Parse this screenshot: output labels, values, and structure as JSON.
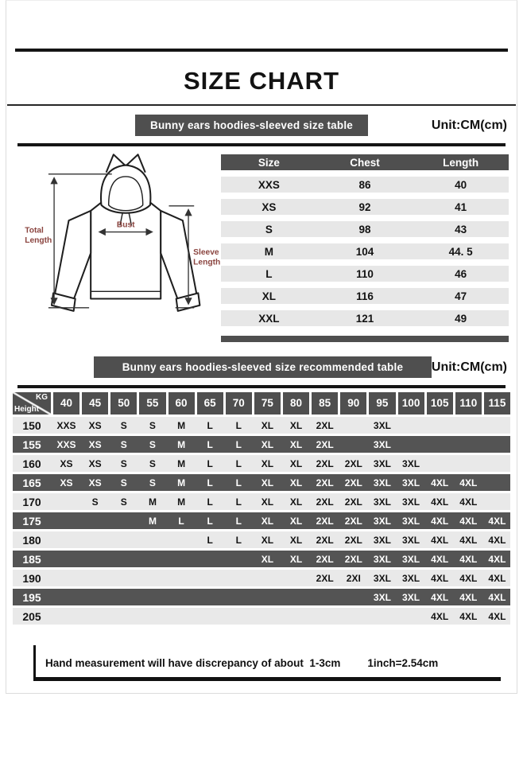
{
  "page": {
    "title": "SIZE CHART"
  },
  "colors": {
    "banner_gray": "#4f4f4f",
    "row_light": "#e9e9e9",
    "row_dark": "#545454",
    "diagram_label_red": "#8b4540"
  },
  "section1": {
    "banner": "Bunny ears hoodies-sleeved size  table",
    "unit": "Unit:CM(cm)",
    "diagram_labels": {
      "total_length": "Total Length",
      "bust": "Bust",
      "sleeve_length": "Sleeve Length"
    },
    "table": {
      "columns": [
        "Size",
        "Chest",
        "Length"
      ],
      "rows": [
        [
          "XXS",
          "86",
          "40"
        ],
        [
          "XS",
          "92",
          "41"
        ],
        [
          "S",
          "98",
          "43"
        ],
        [
          "M",
          "104",
          "44. 5"
        ],
        [
          "L",
          "110",
          "46"
        ],
        [
          "XL",
          "116",
          "47"
        ],
        [
          "XXL",
          "121",
          "49"
        ]
      ]
    }
  },
  "section2": {
    "banner": "Bunny ears hoodies-sleeved size recommended table",
    "unit": "Unit:CM(cm)",
    "matrix": {
      "corner": {
        "top": "KG",
        "bottom": "Height"
      },
      "weights": [
        "40",
        "45",
        "50",
        "55",
        "60",
        "65",
        "70",
        "75",
        "80",
        "85",
        "90",
        "95",
        "100",
        "105",
        "110",
        "115"
      ],
      "rows": [
        {
          "height": "150",
          "shade": "light",
          "values": [
            "XXS",
            "XS",
            "S",
            "S",
            "M",
            "L",
            "L",
            "XL",
            "XL",
            "2XL",
            "",
            "3XL",
            "",
            "",
            "",
            ""
          ]
        },
        {
          "height": "155",
          "shade": "dark",
          "values": [
            "XXS",
            "XS",
            "S",
            "S",
            "M",
            "L",
            "L",
            "XL",
            "XL",
            "2XL",
            "",
            "3XL",
            "",
            "",
            "",
            ""
          ]
        },
        {
          "height": "160",
          "shade": "light",
          "values": [
            "XS",
            "XS",
            "S",
            "S",
            "M",
            "L",
            "L",
            "XL",
            "XL",
            "2XL",
            "2XL",
            "3XL",
            "3XL",
            "",
            "",
            ""
          ]
        },
        {
          "height": "165",
          "shade": "dark",
          "values": [
            "XS",
            "XS",
            "S",
            "S",
            "M",
            "L",
            "L",
            "XL",
            "XL",
            "2XL",
            "2XL",
            "3XL",
            "3XL",
            "4XL",
            "4XL",
            ""
          ]
        },
        {
          "height": "170",
          "shade": "light",
          "values": [
            "",
            "S",
            "S",
            "M",
            "M",
            "L",
            "L",
            "XL",
            "XL",
            "2XL",
            "2XL",
            "3XL",
            "3XL",
            "4XL",
            "4XL",
            ""
          ]
        },
        {
          "height": "175",
          "shade": "dark",
          "values": [
            "",
            "",
            "",
            "M",
            "L",
            "L",
            "L",
            "XL",
            "XL",
            "2XL",
            "2XL",
            "3XL",
            "3XL",
            "4XL",
            "4XL",
            "4XL"
          ]
        },
        {
          "height": "180",
          "shade": "light",
          "values": [
            "",
            "",
            "",
            "",
            "",
            "L",
            "L",
            "XL",
            "XL",
            "2XL",
            "2XL",
            "3XL",
            "3XL",
            "4XL",
            "4XL",
            "4XL"
          ]
        },
        {
          "height": "185",
          "shade": "dark",
          "values": [
            "",
            "",
            "",
            "",
            "",
            "",
            "",
            "XL",
            "XL",
            "2XL",
            "2XL",
            "3XL",
            "3XL",
            "4XL",
            "4XL",
            "4XL"
          ]
        },
        {
          "height": "190",
          "shade": "light",
          "values": [
            "",
            "",
            "",
            "",
            "",
            "",
            "",
            "",
            "",
            "2XL",
            "2XI",
            "3XL",
            "3XL",
            "4XL",
            "4XL",
            "4XL"
          ]
        },
        {
          "height": "195",
          "shade": "dark",
          "values": [
            "",
            "",
            "",
            "",
            "",
            "",
            "",
            "",
            "",
            "",
            "",
            "3XL",
            "3XL",
            "4XL",
            "4XL",
            "4XL"
          ]
        },
        {
          "height": "205",
          "shade": "light",
          "values": [
            "",
            "",
            "",
            "",
            "",
            "",
            "",
            "",
            "",
            "",
            "",
            "",
            "",
            "4XL",
            "4XL",
            "4XL"
          ]
        }
      ]
    }
  },
  "footer": {
    "note": "Hand measurement will have discrepancy of about  1-3cm",
    "conversion": "1inch=2.54cm"
  }
}
